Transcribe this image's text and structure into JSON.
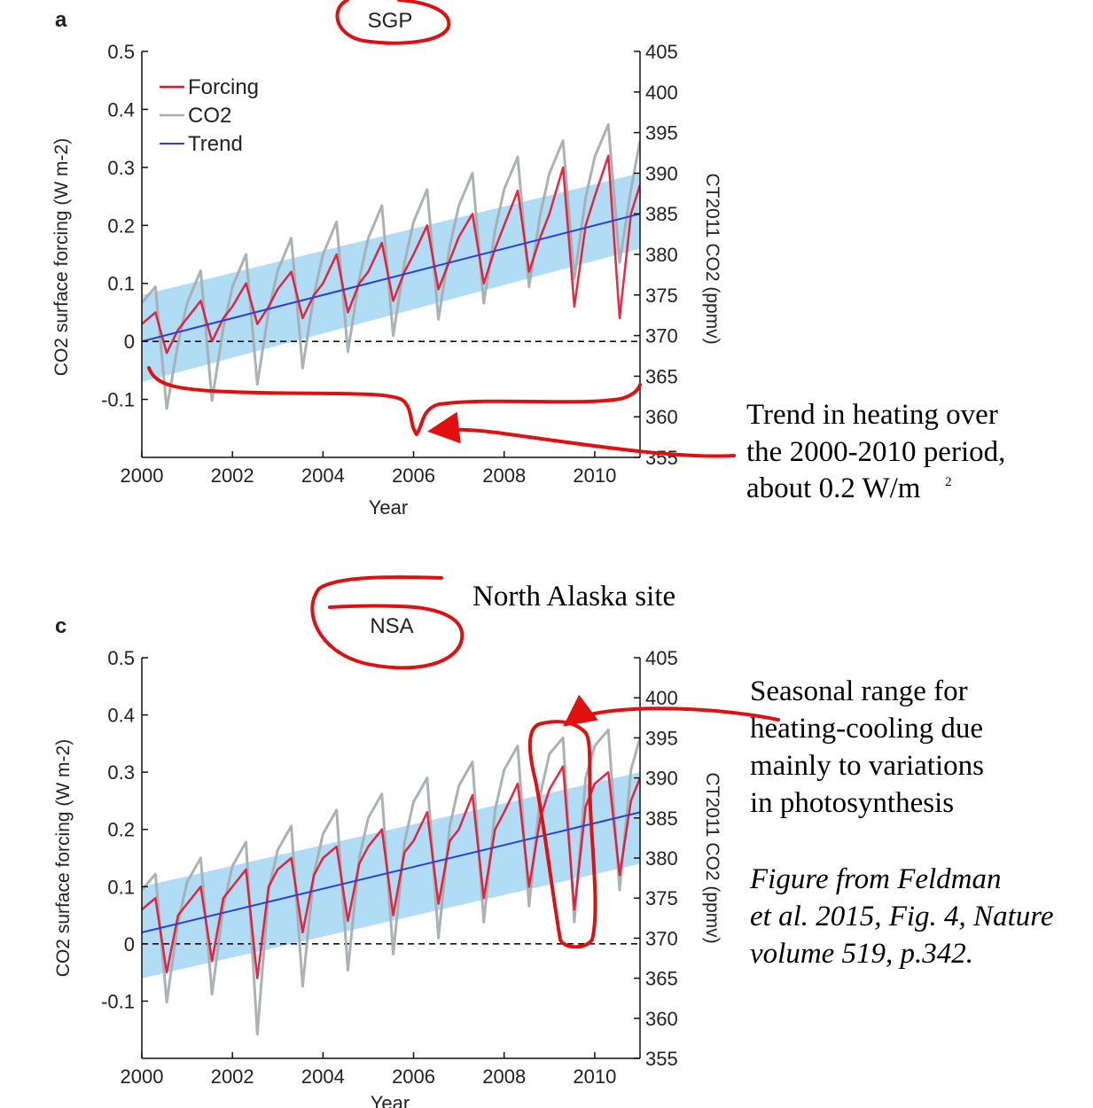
{
  "colors": {
    "forcing": "#e8102e",
    "co2": "#a7adb1",
    "trend": "#2a3fd8",
    "band": "#a9d8f5",
    "annotation": "#e01010",
    "axis": "#111111"
  },
  "annotations": {
    "trend_note": [
      "Trend in heating over",
      "the 2000-2010 period,",
      "about 0.2 W/m"
    ],
    "trend_note_sup": "2",
    "north_alaska": "North Alaska site",
    "seasonal_note": [
      "Seasonal range for",
      "heating-cooling due",
      "mainly to variations",
      "in photosynthesis"
    ],
    "source_note": [
      "Figure from Feldman",
      "et al. 2015, Fig. 4, Nature",
      "volume 519, p.342."
    ]
  },
  "chart_data": [
    {
      "type": "line",
      "panel": "a",
      "title": "SGP",
      "xlabel": "Year",
      "ylabel": "CO2 surface forcing (W m-2)",
      "y2label": "CT2011 CO2 (ppmv)",
      "xlim": [
        2000,
        2011
      ],
      "ylim": [
        -0.2,
        0.5
      ],
      "y2lim": [
        355,
        405
      ],
      "x_ticks": [
        "2000",
        "2002",
        "2004",
        "2006",
        "2008",
        "2010"
      ],
      "y_ticks": [
        "0.5",
        "0.4",
        "0.3",
        "0.2",
        "0.1",
        "0",
        "-0.1"
      ],
      "y2_ticks": [
        "405",
        "400",
        "395",
        "390",
        "385",
        "380",
        "375",
        "370",
        "365",
        "360",
        "355"
      ],
      "legend": [
        "Forcing",
        "CO2",
        "Trend"
      ],
      "legend_position": "top-left",
      "zero_line": "dashed",
      "trend": {
        "x": [
          2000,
          2011
        ],
        "y": [
          0.0,
          0.22
        ]
      },
      "uncertainty_band": {
        "x": [
          2000,
          2011
        ],
        "lower": [
          -0.07,
          0.16
        ],
        "upper": [
          0.08,
          0.29
        ]
      },
      "series": [
        {
          "name": "Forcing",
          "x": [
            2000.0,
            2000.3,
            2000.55,
            2000.8,
            2001.0,
            2001.3,
            2001.55,
            2001.8,
            2002.0,
            2002.3,
            2002.55,
            2002.8,
            2003.0,
            2003.3,
            2003.55,
            2003.8,
            2004.0,
            2004.3,
            2004.55,
            2004.8,
            2005.0,
            2005.3,
            2005.55,
            2005.8,
            2006.0,
            2006.3,
            2006.55,
            2006.8,
            2007.0,
            2007.3,
            2007.55,
            2007.8,
            2008.0,
            2008.3,
            2008.55,
            2008.8,
            2009.0,
            2009.3,
            2009.55,
            2009.8,
            2010.0,
            2010.3,
            2010.55,
            2010.8,
            2011.0
          ],
          "y": [
            0.03,
            0.05,
            -0.02,
            0.02,
            0.04,
            0.07,
            0.0,
            0.04,
            0.06,
            0.1,
            0.03,
            0.06,
            0.09,
            0.12,
            0.04,
            0.08,
            0.1,
            0.15,
            0.05,
            0.1,
            0.12,
            0.17,
            0.07,
            0.12,
            0.15,
            0.2,
            0.09,
            0.14,
            0.18,
            0.22,
            0.1,
            0.16,
            0.2,
            0.26,
            0.12,
            0.18,
            0.22,
            0.3,
            0.06,
            0.2,
            0.25,
            0.32,
            0.04,
            0.22,
            0.27
          ]
        },
        {
          "name": "CO2",
          "x": [
            2000.0,
            2000.3,
            2000.55,
            2000.8,
            2001.0,
            2001.3,
            2001.55,
            2001.8,
            2002.0,
            2002.3,
            2002.55,
            2002.8,
            2003.0,
            2003.3,
            2003.55,
            2003.8,
            2004.0,
            2004.3,
            2004.55,
            2004.8,
            2005.0,
            2005.3,
            2005.55,
            2005.8,
            2006.0,
            2006.3,
            2006.55,
            2006.8,
            2007.0,
            2007.3,
            2007.55,
            2007.8,
            2008.0,
            2008.3,
            2008.55,
            2008.8,
            2009.0,
            2009.3,
            2009.55,
            2009.8,
            2010.0,
            2010.3,
            2010.55,
            2010.8,
            2011.0
          ],
          "y": [
            374,
            376,
            361,
            369,
            374,
            378,
            362,
            371,
            376,
            380,
            364,
            373,
            378,
            382,
            366,
            375,
            380,
            384,
            368,
            377,
            382,
            386,
            370,
            379,
            384,
            388,
            372,
            381,
            386,
            390,
            374,
            383,
            388,
            392,
            376,
            385,
            390,
            394,
            377,
            387,
            392,
            396,
            379,
            388,
            394
          ]
        }
      ]
    },
    {
      "type": "line",
      "panel": "c",
      "title": "NSA",
      "xlabel": "Year",
      "ylabel": "CO2 surface forcing (W m-2)",
      "y2label": "CT2011 CO2 (ppmv)",
      "xlim": [
        2000,
        2011
      ],
      "ylim": [
        -0.2,
        0.5
      ],
      "y2lim": [
        355,
        405
      ],
      "x_ticks": [
        "2000",
        "2002",
        "2004",
        "2006",
        "2008",
        "2010"
      ],
      "y_ticks": [
        "0.5",
        "0.4",
        "0.3",
        "0.2",
        "0.1",
        "0",
        "-0.1"
      ],
      "y2_ticks": [
        "405",
        "400",
        "395",
        "390",
        "385",
        "380",
        "375",
        "370",
        "365",
        "360",
        "355"
      ],
      "zero_line": "dashed",
      "trend": {
        "x": [
          2000,
          2011
        ],
        "y": [
          0.02,
          0.23
        ]
      },
      "uncertainty_band": {
        "x": [
          2000,
          2011
        ],
        "lower": [
          -0.06,
          0.14
        ],
        "upper": [
          0.1,
          0.3
        ]
      },
      "series": [
        {
          "name": "Forcing",
          "x": [
            2000.0,
            2000.3,
            2000.55,
            2000.8,
            2001.0,
            2001.3,
            2001.55,
            2001.8,
            2002.0,
            2002.3,
            2002.55,
            2002.8,
            2003.0,
            2003.3,
            2003.55,
            2003.8,
            2004.0,
            2004.3,
            2004.55,
            2004.8,
            2005.0,
            2005.3,
            2005.55,
            2005.8,
            2006.0,
            2006.3,
            2006.55,
            2006.8,
            2007.0,
            2007.3,
            2007.55,
            2007.8,
            2008.0,
            2008.3,
            2008.55,
            2008.8,
            2009.0,
            2009.3,
            2009.55,
            2009.8,
            2010.0,
            2010.3,
            2010.55,
            2010.8,
            2011.0
          ],
          "y": [
            0.06,
            0.08,
            -0.05,
            0.05,
            0.07,
            0.1,
            -0.03,
            0.08,
            0.1,
            0.13,
            -0.06,
            0.1,
            0.13,
            0.15,
            0.02,
            0.12,
            0.15,
            0.17,
            0.04,
            0.14,
            0.17,
            0.2,
            0.05,
            0.16,
            0.18,
            0.23,
            0.07,
            0.18,
            0.2,
            0.26,
            0.08,
            0.2,
            0.23,
            0.28,
            0.1,
            0.22,
            0.27,
            0.31,
            0.06,
            0.24,
            0.28,
            0.3,
            0.12,
            0.25,
            0.29
          ]
        },
        {
          "name": "CO2",
          "x": [
            2000.0,
            2000.3,
            2000.55,
            2000.8,
            2001.0,
            2001.3,
            2001.55,
            2001.8,
            2002.0,
            2002.3,
            2002.55,
            2002.8,
            2003.0,
            2003.3,
            2003.55,
            2003.8,
            2004.0,
            2004.3,
            2004.55,
            2004.8,
            2005.0,
            2005.3,
            2005.55,
            2005.8,
            2006.0,
            2006.3,
            2006.55,
            2006.8,
            2007.0,
            2007.3,
            2007.55,
            2007.8,
            2008.0,
            2008.3,
            2008.55,
            2008.8,
            2009.0,
            2009.3,
            2009.55,
            2009.8,
            2010.0,
            2010.3,
            2010.55,
            2010.8,
            2011.0
          ],
          "y": [
            376,
            378,
            362,
            372,
            377,
            380,
            363,
            374,
            379,
            382,
            358,
            376,
            381,
            384,
            364,
            378,
            383,
            386,
            366,
            380,
            385,
            388,
            368,
            382,
            387,
            390,
            370,
            384,
            389,
            392,
            372,
            386,
            391,
            394,
            374,
            388,
            393,
            395,
            372,
            390,
            394,
            396,
            376,
            391,
            395
          ]
        }
      ]
    }
  ]
}
